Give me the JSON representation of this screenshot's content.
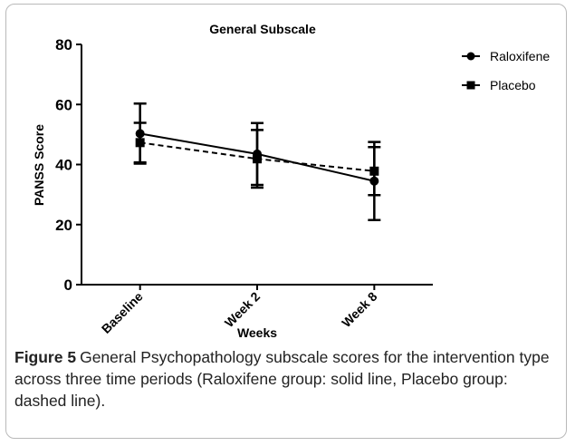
{
  "chart_data": {
    "type": "line",
    "title": "General Subscale",
    "y_label": "PANSS Score",
    "x_label": "Weeks",
    "categories": [
      "Baseline",
      "Week 2",
      "Week 8"
    ],
    "series": [
      {
        "name": "Raloxifene",
        "color": "#000000",
        "marker": "circle",
        "linestyle": "solid",
        "values": [
          50.3,
          43.5,
          34.5
        ],
        "errors": [
          10,
          10.3,
          13
        ]
      },
      {
        "name": "Placebo",
        "color": "#000000",
        "marker": "square",
        "linestyle": "dashed",
        "values": [
          47.3,
          41.9,
          37.8
        ],
        "errors": [
          6.6,
          9.6,
          8
        ]
      }
    ],
    "ylim": [
      0,
      80
    ],
    "yticks": [
      0,
      20,
      40,
      60,
      80
    ],
    "legend": "right"
  },
  "caption": {
    "label": "Figure 5",
    "text": "General Psychopathology subscale scores for the intervention type across three time periods (Raloxifene group: solid line, Placebo group: dashed line)."
  }
}
